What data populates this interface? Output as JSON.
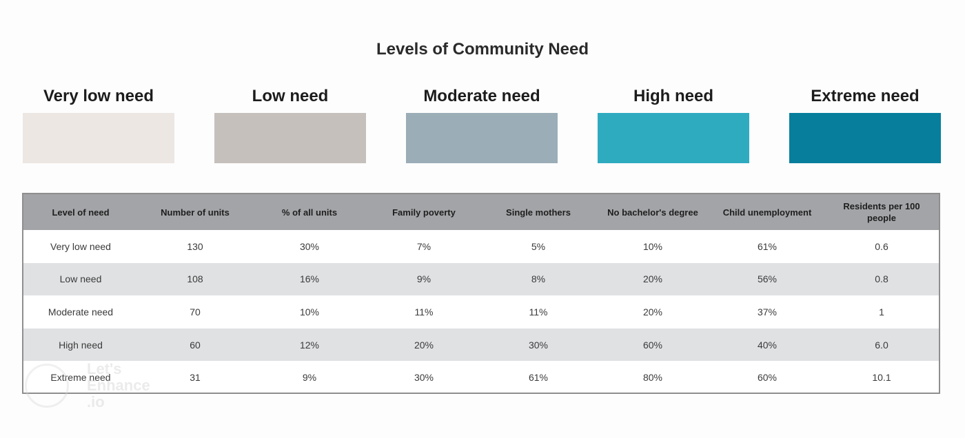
{
  "title": "Levels of Community Need",
  "legend": [
    {
      "label": "Very low need",
      "color": "#ece7e2"
    },
    {
      "label": "Low need",
      "color": "#c6c0bc"
    },
    {
      "label": "Moderate need",
      "color": "#9badb7"
    },
    {
      "label": "High need",
      "color": "#2fabc0"
    },
    {
      "label": "Extreme need",
      "color": "#067e9c"
    }
  ],
  "table": {
    "headers": [
      "Level of need",
      "Number of units",
      "% of all units",
      "Family poverty",
      "Single mothers",
      "No bachelor's degree",
      "Child unemployment",
      "Residents per 100 people"
    ],
    "rows": [
      [
        "Very low need",
        "130",
        "30%",
        "7%",
        "5%",
        "10%",
        "61%",
        "0.6"
      ],
      [
        "Low need",
        "108",
        "16%",
        "9%",
        "8%",
        "20%",
        "56%",
        "0.8"
      ],
      [
        "Moderate need",
        "70",
        "10%",
        "11%",
        "11%",
        "20%",
        "37%",
        "1"
      ],
      [
        "High need",
        "60",
        "12%",
        "20%",
        "30%",
        "60%",
        "40%",
        "6.0"
      ],
      [
        "Extreme need",
        "31",
        "9%",
        "30%",
        "61%",
        "80%",
        "60%",
        "10.1"
      ]
    ]
  },
  "watermark": {
    "line1": "Let's",
    "line2": "Enhance",
    "line3": ".io"
  }
}
